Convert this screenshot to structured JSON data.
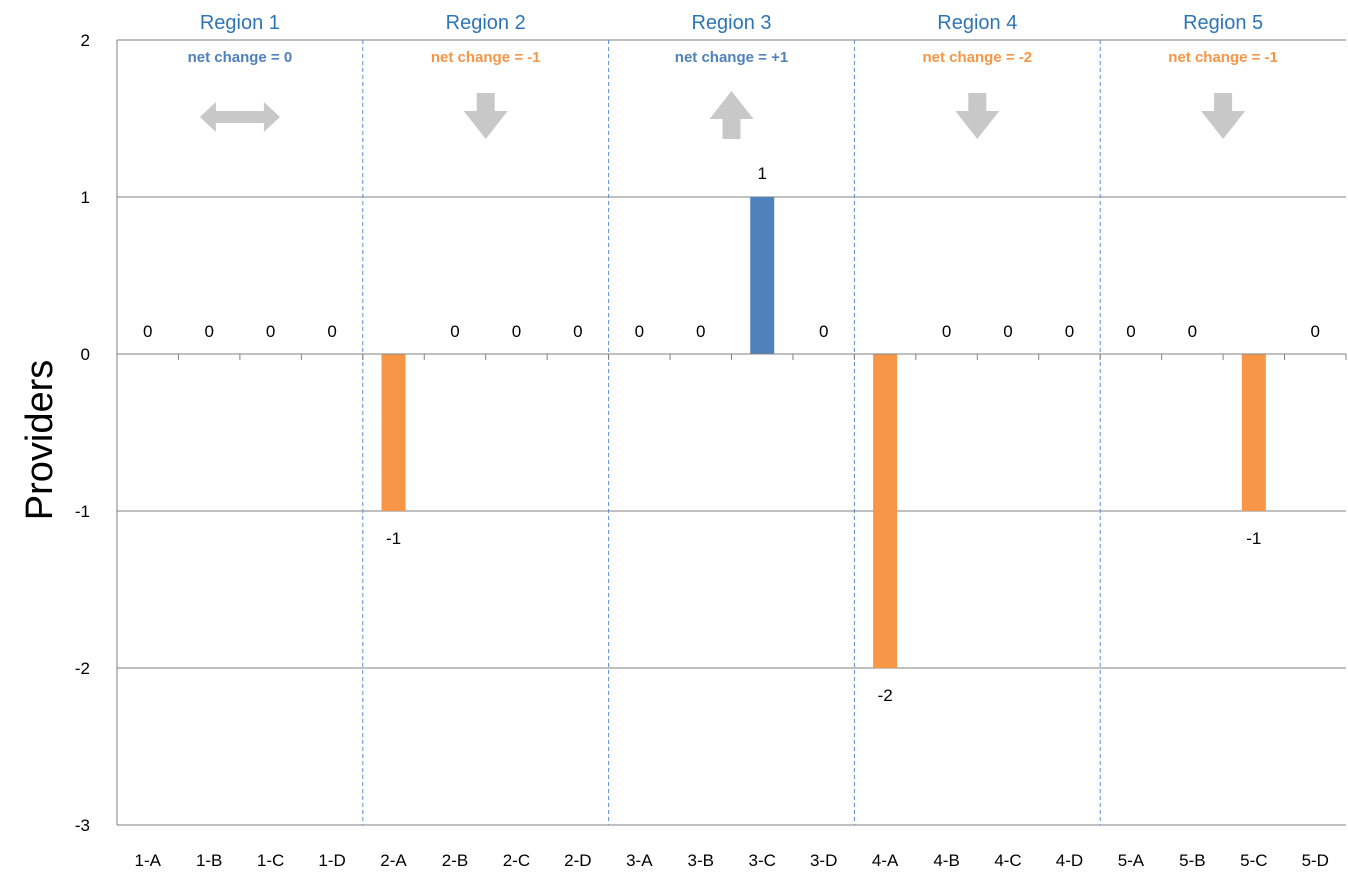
{
  "chart_data": {
    "type": "bar",
    "title": "",
    "xlabel": "",
    "ylabel": "Providers",
    "ylim": [
      -3,
      2
    ],
    "yticks": [
      2,
      1,
      0,
      -1,
      -2,
      -3
    ],
    "grid": true,
    "categories": [
      "1-A",
      "1-B",
      "1-C",
      "1-D",
      "2-A",
      "2-B",
      "2-C",
      "2-D",
      "3-A",
      "3-B",
      "3-C",
      "3-D",
      "4-A",
      "4-B",
      "4-C",
      "4-D",
      "5-A",
      "5-B",
      "5-C",
      "5-D"
    ],
    "values": [
      0,
      0,
      0,
      0,
      -1,
      0,
      0,
      0,
      0,
      0,
      1,
      0,
      -2,
      0,
      0,
      0,
      0,
      0,
      -1,
      0
    ],
    "colors": {
      "positive": "#4f81bd",
      "negative": "#f79646",
      "region_title": "#2e75b6",
      "arrow": "#c8c8c8",
      "divider": "#5b8fd1",
      "grid": "#808080"
    },
    "regions": [
      {
        "label": "Region 1",
        "net_change": "net change = 0",
        "trend": "flat",
        "color": "#4f81bd"
      },
      {
        "label": "Region 2",
        "net_change": "net change = -1",
        "trend": "down",
        "color": "#f79646"
      },
      {
        "label": "Region 3",
        "net_change": "net change = +1",
        "trend": "up",
        "color": "#4f81bd"
      },
      {
        "label": "Region 4",
        "net_change": "net change = -2",
        "trend": "down",
        "color": "#f79646"
      },
      {
        "label": "Region 5",
        "net_change": "net change  = -1",
        "trend": "down",
        "color": "#f79646"
      }
    ]
  }
}
